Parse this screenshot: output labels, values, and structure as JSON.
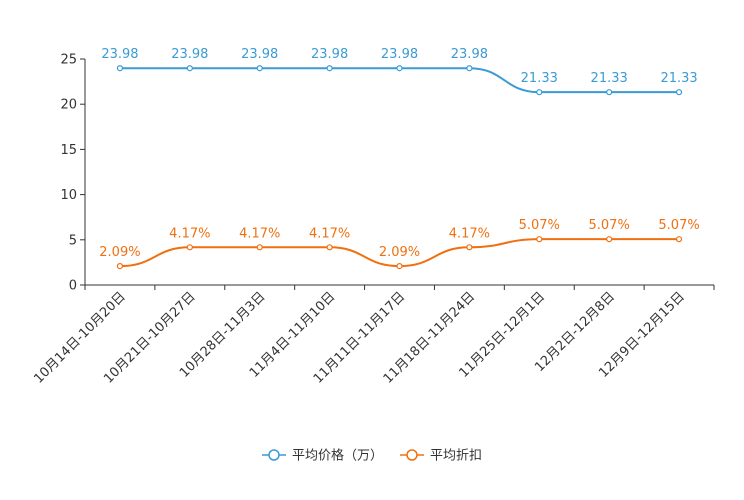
{
  "chart_data": {
    "type": "line",
    "categories": [
      "10月14日-10月20日",
      "10月21日-10月27日",
      "10月28日-11月3日",
      "11月4日-11月10日",
      "11月11日-11月17日",
      "11月18日-11月24日",
      "11月25日-12月1日",
      "12月2日-12月8日",
      "12月9日-12月15日"
    ],
    "ylim": [
      0,
      25
    ],
    "yticks": [
      0,
      5,
      10,
      15,
      20,
      25
    ],
    "series": [
      {
        "name": "平均价格（万）",
        "color": "#3a9bd5",
        "values": [
          23.98,
          23.98,
          23.98,
          23.98,
          23.98,
          23.98,
          21.33,
          21.33,
          21.33
        ],
        "labels": [
          "23.98",
          "23.98",
          "23.98",
          "23.98",
          "23.98",
          "23.98",
          "21.33",
          "21.33",
          "21.33"
        ]
      },
      {
        "name": "平均折扣",
        "color": "#f07010",
        "values": [
          2.09,
          4.17,
          4.17,
          4.17,
          2.09,
          4.17,
          5.07,
          5.07,
          5.07
        ],
        "labels": [
          "2.09%",
          "4.17%",
          "4.17%",
          "4.17%",
          "2.09%",
          "4.17%",
          "5.07%",
          "5.07%",
          "5.07%"
        ]
      }
    ],
    "legend": {
      "position": "bottom"
    },
    "grid": false
  }
}
